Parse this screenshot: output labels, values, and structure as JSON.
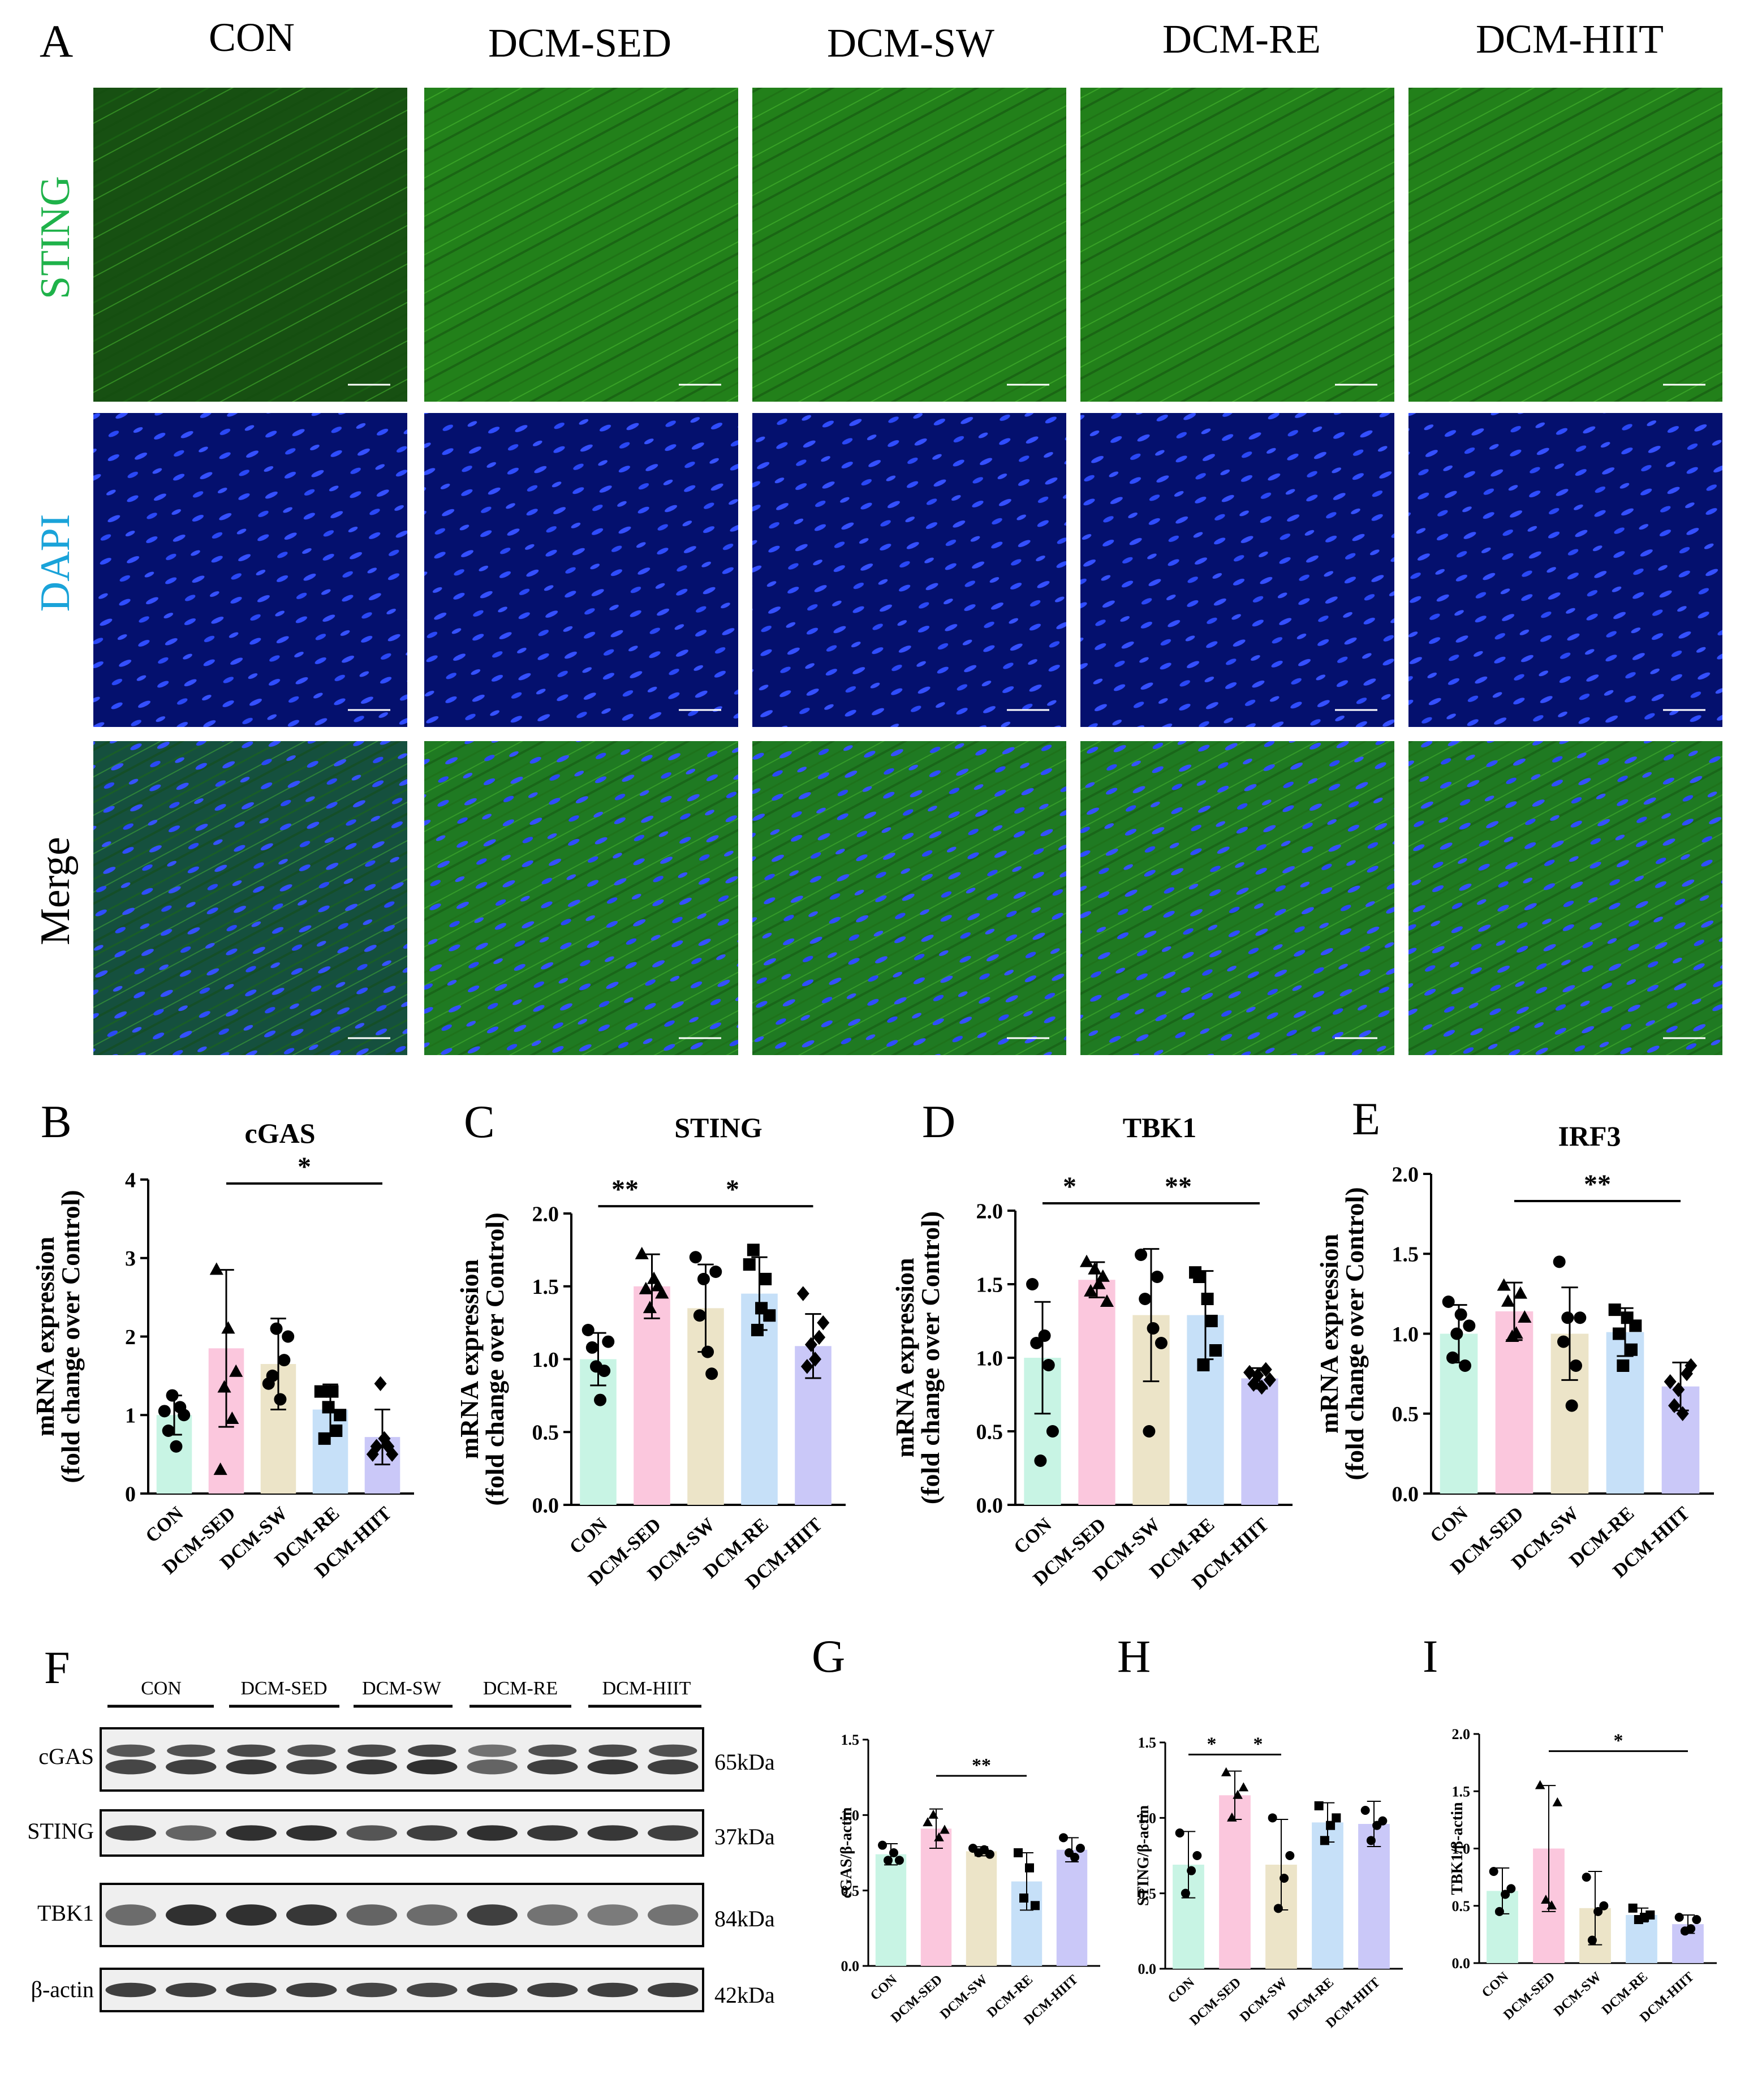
{
  "panel_a": {
    "letter": "A",
    "groups": [
      "CON",
      "DCM-SED",
      "DCM-SW",
      "DCM-RE",
      "DCM-HIIT"
    ],
    "rows": [
      {
        "label": "STING",
        "stain": "green",
        "color": "#1fb24a"
      },
      {
        "label": "DAPI",
        "stain": "blue",
        "color": "#1aa3d9"
      },
      {
        "label": "Merge",
        "stain": "merge",
        "color": "#000000"
      }
    ]
  },
  "panel_f": {
    "letter": "F",
    "groups": [
      "CON",
      "DCM-SED",
      "DCM-SW",
      "DCM-RE",
      "DCM-HIIT"
    ],
    "blots": [
      {
        "label": "cGAS",
        "size": "65kDa",
        "intensity": [
          0.8,
          0.85,
          0.9,
          0.85,
          0.9,
          0.95,
          0.6,
          0.85,
          0.9,
          0.85
        ],
        "double_band": true
      },
      {
        "label": "STING",
        "size": "37kDa",
        "intensity": [
          0.85,
          0.6,
          0.95,
          0.95,
          0.7,
          0.85,
          0.95,
          0.9,
          0.9,
          0.85
        ],
        "double_band": false
      },
      {
        "label": "TBK1",
        "size": "84kDa",
        "intensity": [
          0.55,
          0.95,
          0.95,
          0.9,
          0.6,
          0.55,
          0.85,
          0.5,
          0.45,
          0.5
        ],
        "double_band": false
      },
      {
        "label": "β-actin",
        "size": "42kDa",
        "intensity": [
          0.85,
          0.85,
          0.85,
          0.85,
          0.8,
          0.8,
          0.85,
          0.85,
          0.85,
          0.85
        ],
        "double_band": false
      }
    ]
  },
  "colors": {
    "CON": "#c8f4e4",
    "DCM-SED": "#fbc7dd",
    "DCM-SW": "#ece4c8",
    "DCM-RE": "#c6e0f8",
    "DCM-HIIT": "#cac8f8"
  },
  "chart_data": [
    {
      "panel": "B",
      "type": "bar",
      "title": "cGAS",
      "ylabel": "mRNA expression\n(fold change over Control)",
      "ylim": [
        0,
        4
      ],
      "yticks": [
        "0",
        "1",
        "2",
        "3",
        "4"
      ],
      "categories": [
        "CON",
        "DCM-SED",
        "DCM-SW",
        "DCM-RE",
        "DCM-HIIT"
      ],
      "values": [
        1.0,
        1.85,
        1.65,
        1.07,
        0.72
      ],
      "sd": [
        0.25,
        1.0,
        0.58,
        0.32,
        0.35
      ],
      "markers": [
        "circle",
        "triangle",
        "circle",
        "square",
        "diamond"
      ],
      "points": [
        [
          1.05,
          0.8,
          1.25,
          0.6,
          1.1,
          1.0
        ],
        [
          2.85,
          0.3,
          1.35,
          2.1,
          0.95,
          1.55
        ],
        [
          1.4,
          1.5,
          2.1,
          1.2,
          1.7,
          2.0
        ],
        [
          1.3,
          0.7,
          1.1,
          1.3,
          0.8,
          1.0
        ],
        [
          0.5,
          0.6,
          1.4,
          0.7,
          0.6,
          0.5
        ]
      ],
      "sig": [
        {
          "from": 1,
          "to": 4,
          "label": "*",
          "y": 3.95
        }
      ]
    },
    {
      "panel": "C",
      "type": "bar",
      "title": "STING",
      "ylabel": "mRNA expression\n(fold change over Control)",
      "ylim": [
        0,
        2.0
      ],
      "yticks": [
        "0.0",
        "0.5",
        "1.0",
        "1.5",
        "2.0"
      ],
      "categories": [
        "CON",
        "DCM-SED",
        "DCM-SW",
        "DCM-RE",
        "DCM-HIIT"
      ],
      "values": [
        1.0,
        1.5,
        1.35,
        1.45,
        1.09
      ],
      "sd": [
        0.18,
        0.22,
        0.3,
        0.25,
        0.22
      ],
      "markers": [
        "circle",
        "triangle",
        "circle",
        "square",
        "diamond"
      ],
      "points": [
        [
          1.2,
          1.08,
          0.95,
          0.72,
          0.92,
          1.12
        ],
        [
          1.72,
          1.48,
          1.35,
          1.55,
          1.5,
          1.45
        ],
        [
          1.7,
          1.3,
          1.55,
          1.05,
          0.9,
          1.6
        ],
        [
          1.65,
          1.75,
          1.2,
          1.35,
          1.55,
          1.3
        ],
        [
          1.45,
          0.95,
          1.1,
          1.0,
          1.15,
          1.25
        ]
      ],
      "sig": [
        {
          "from": 0,
          "to": 1,
          "label": "**",
          "y": 2.05
        },
        {
          "from": 1,
          "to": 4,
          "label": "*",
          "y": 2.05
        }
      ]
    },
    {
      "panel": "D",
      "type": "bar",
      "title": "TBK1",
      "ylabel": "mRNA expression\n(fold change over Control)",
      "ylim": [
        0,
        2.0
      ],
      "yticks": [
        "0.0",
        "0.5",
        "1.0",
        "1.5",
        "2.0"
      ],
      "categories": [
        "CON",
        "DCM-SED",
        "DCM-SW",
        "DCM-RE",
        "DCM-HIIT"
      ],
      "values": [
        1.0,
        1.53,
        1.29,
        1.29,
        0.86
      ],
      "sd": [
        0.38,
        0.12,
        0.45,
        0.3,
        0.07
      ],
      "markers": [
        "circle",
        "triangle",
        "circle",
        "square",
        "diamond"
      ],
      "points": [
        [
          1.5,
          1.1,
          0.3,
          1.15,
          0.95,
          0.5
        ],
        [
          1.65,
          1.45,
          1.6,
          1.5,
          1.55,
          1.38
        ],
        [
          1.7,
          1.4,
          0.5,
          1.2,
          1.55,
          1.1
        ],
        [
          1.58,
          1.55,
          0.95,
          1.4,
          1.25,
          1.05
        ],
        [
          0.9,
          0.82,
          0.88,
          0.8,
          0.92,
          0.85
        ]
      ],
      "sig": [
        {
          "from": 0,
          "to": 1,
          "label": "*",
          "y": 2.05
        },
        {
          "from": 1,
          "to": 4,
          "label": "**",
          "y": 2.05
        }
      ]
    },
    {
      "panel": "E",
      "type": "bar",
      "title": "IRF3",
      "ylabel": "mRNA expression\n(fold change over Control)",
      "ylim": [
        0,
        2.0
      ],
      "yticks": [
        "0.0",
        "0.5",
        "1.0",
        "1.5",
        "2.0"
      ],
      "categories": [
        "CON",
        "DCM-SED",
        "DCM-SW",
        "DCM-RE",
        "DCM-HIIT"
      ],
      "values": [
        1.0,
        1.14,
        1.0,
        1.01,
        0.67
      ],
      "sd": [
        0.18,
        0.18,
        0.29,
        0.15,
        0.15
      ],
      "markers": [
        "circle",
        "triangle",
        "circle",
        "square",
        "diamond"
      ],
      "points": [
        [
          1.2,
          0.85,
          1.0,
          1.12,
          0.8,
          1.05
        ],
        [
          1.3,
          1.2,
          0.98,
          1.0,
          1.25,
          1.1
        ],
        [
          1.45,
          0.95,
          1.1,
          0.55,
          0.8,
          1.1
        ],
        [
          1.15,
          1.0,
          0.8,
          1.1,
          0.9,
          1.05
        ],
        [
          0.7,
          0.55,
          0.65,
          0.5,
          0.75,
          0.8
        ]
      ],
      "sig": [
        {
          "from": 1,
          "to": 4,
          "label": "**",
          "y": 1.83
        }
      ]
    },
    {
      "panel": "G",
      "type": "bar",
      "title": "",
      "ylabel": "cGAS/β-actin",
      "ylim": [
        0,
        1.5
      ],
      "yticks": [
        "0.0",
        "0.5",
        "1.0",
        "1.5"
      ],
      "categories": [
        "CON",
        "DCM-SED",
        "DCM-SW",
        "DCM-RE",
        "DCM-HIIT"
      ],
      "values": [
        0.74,
        0.91,
        0.76,
        0.56,
        0.77
      ],
      "sd": [
        0.07,
        0.13,
        0.03,
        0.19,
        0.08
      ],
      "markers": [
        "circle",
        "triangle",
        "circle",
        "square",
        "circle"
      ],
      "points": [
        [
          0.8,
          0.7,
          0.75,
          0.7
        ],
        [
          0.95,
          1.0,
          0.85,
          0.9
        ],
        [
          0.78,
          0.75,
          0.77,
          0.74
        ],
        [
          0.75,
          0.45,
          0.65,
          0.4
        ],
        [
          0.85,
          0.75,
          0.72,
          0.78
        ]
      ],
      "sig": [
        {
          "from": 1,
          "to": 3,
          "label": "**",
          "y": 1.26
        }
      ]
    },
    {
      "panel": "H",
      "type": "bar",
      "title": "",
      "ylabel": "STING/β-actin",
      "ylim": [
        0,
        1.5
      ],
      "yticks": [
        "0.0",
        "0.5",
        "1.0",
        "1.5"
      ],
      "categories": [
        "CON",
        "DCM-SED",
        "DCM-SW",
        "DCM-RE",
        "DCM-HIIT"
      ],
      "values": [
        0.69,
        1.15,
        0.69,
        0.97,
        0.96
      ],
      "sd": [
        0.22,
        0.16,
        0.3,
        0.13,
        0.15
      ],
      "markers": [
        "circle",
        "triangle",
        "circle",
        "square",
        "circle"
      ],
      "points": [
        [
          0.9,
          0.5,
          0.65,
          0.75
        ],
        [
          1.3,
          1.0,
          1.15,
          1.2
        ],
        [
          1.0,
          0.4,
          0.6,
          0.75
        ],
        [
          1.08,
          0.85,
          0.95,
          1.0
        ],
        [
          1.05,
          0.85,
          0.95,
          0.98
        ]
      ],
      "sig": [
        {
          "from": 0,
          "to": 1,
          "label": "*",
          "y": 1.42
        },
        {
          "from": 1,
          "to": 2,
          "label": "*",
          "y": 1.42
        }
      ]
    },
    {
      "panel": "I",
      "type": "bar",
      "title": "",
      "ylabel": "TBK1/β-actin",
      "ylim": [
        0,
        2.0
      ],
      "yticks": [
        "0.0",
        "0.5",
        "1.0",
        "1.5",
        "2.0"
      ],
      "categories": [
        "CON",
        "DCM-SED",
        "DCM-SW",
        "DCM-RE",
        "DCM-HIIT"
      ],
      "values": [
        0.63,
        1.0,
        0.48,
        0.42,
        0.34
      ],
      "sd": [
        0.2,
        0.55,
        0.32,
        0.06,
        0.08
      ],
      "markers": [
        "circle",
        "triangle",
        "circle",
        "square",
        "circle"
      ],
      "points": [
        [
          0.8,
          0.45,
          0.6,
          0.65
        ],
        [
          1.55,
          0.55,
          0.5,
          1.4
        ],
        [
          0.75,
          0.2,
          0.45,
          0.5
        ],
        [
          0.48,
          0.38,
          0.4,
          0.42
        ],
        [
          0.4,
          0.28,
          0.3,
          0.38
        ]
      ],
      "sig": [
        {
          "from": 1,
          "to": 4,
          "label": "*",
          "y": 1.85
        }
      ]
    }
  ]
}
